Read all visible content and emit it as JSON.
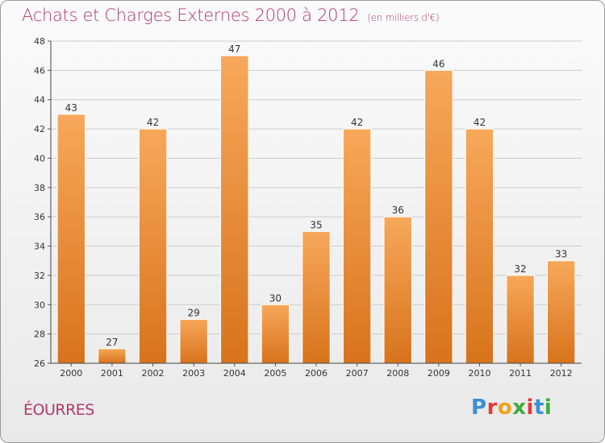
{
  "header": {
    "title": "Achats et Charges Externes 2000 à 2012",
    "unit": "(en milliers d'€)"
  },
  "footer": {
    "commune": "ÉOURRES",
    "logo_letters": [
      "P",
      "r",
      "o",
      "x",
      "i",
      "t",
      "i"
    ]
  },
  "colors": {
    "title": "#b23a6b",
    "bar_top": "#f7a85a",
    "bar_bottom": "#d8731c",
    "grid": "#cccccc"
  },
  "chart_data": {
    "type": "bar",
    "categories": [
      "2000",
      "2001",
      "2002",
      "2003",
      "2004",
      "2005",
      "2006",
      "2007",
      "2008",
      "2009",
      "2010",
      "2011",
      "2012"
    ],
    "values": [
      43,
      27,
      42,
      29,
      47,
      30,
      35,
      42,
      36,
      46,
      42,
      32,
      33
    ],
    "ylim": [
      26,
      48
    ],
    "yticks": [
      26,
      28,
      30,
      32,
      34,
      36,
      38,
      40,
      42,
      44,
      46,
      48
    ],
    "grid": true,
    "data_labels": true
  }
}
